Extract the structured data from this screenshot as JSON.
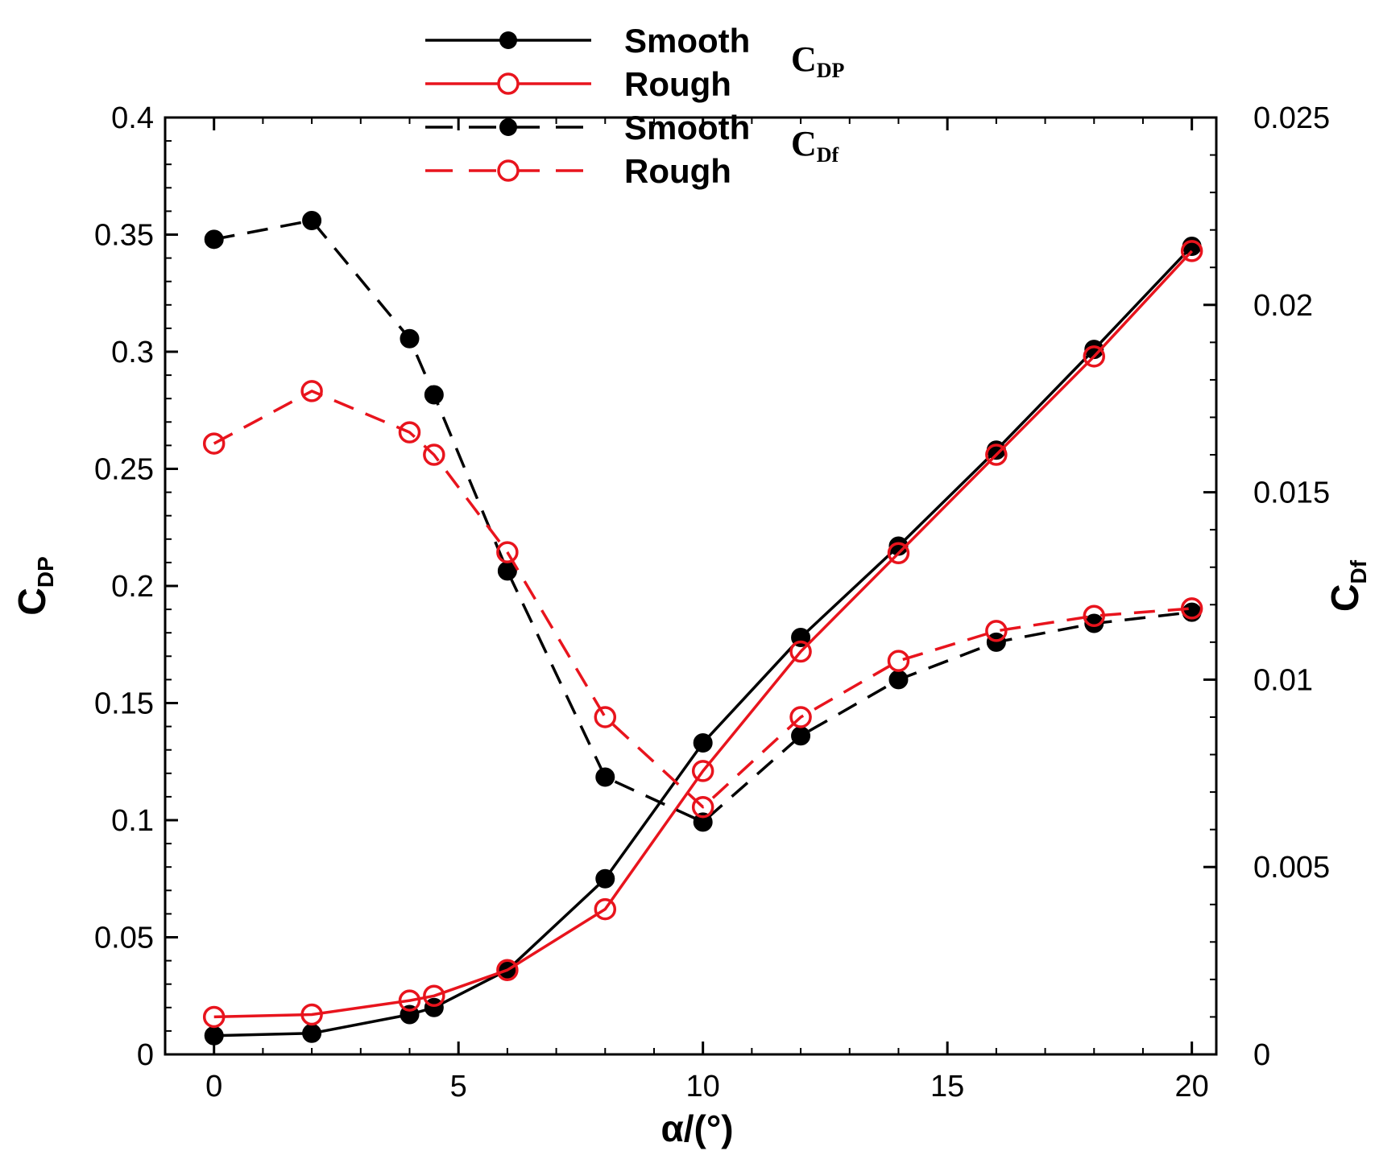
{
  "chart_data": {
    "type": "line",
    "title": "",
    "xlabel": "α/(°)",
    "ylabel": {
      "main": "C",
      "sub": "DP"
    },
    "y2label": {
      "main": "C",
      "sub": "Df"
    },
    "xlim": [
      -1,
      20.5
    ],
    "ylim": [
      0,
      0.4
    ],
    "y2lim": [
      0,
      0.025
    ],
    "xticks": [
      0,
      5,
      10,
      15,
      20
    ],
    "xtick_labels": [
      "0",
      "5",
      "10",
      "15",
      "20"
    ],
    "yticks": [
      0,
      0.05,
      0.1,
      0.15,
      0.2,
      0.25,
      0.3,
      0.35,
      0.4
    ],
    "ytick_labels": [
      "0",
      "0.05",
      "0.1",
      "0.15",
      "0.2",
      "0.25",
      "0.3",
      "0.35",
      "0.4"
    ],
    "y2ticks": [
      0,
      0.005,
      0.01,
      0.015,
      0.02,
      0.025
    ],
    "y2tick_labels": [
      "0",
      "0.005",
      "0.01",
      "0.015",
      "0.02",
      "0.025"
    ],
    "legend_groups": [
      {
        "label": {
          "main": "C",
          "sub": "DP"
        }
      },
      {
        "label": {
          "main": "C",
          "sub": "Df"
        }
      }
    ],
    "series": [
      {
        "name": "Smooth",
        "group": "CDP",
        "axis": "left",
        "color": "#000000",
        "dash": "solid",
        "marker": "filled",
        "x": [
          0,
          2,
          4,
          4.5,
          6,
          8,
          10,
          12,
          14,
          16,
          18,
          20
        ],
        "values": [
          0.008,
          0.009,
          0.017,
          0.02,
          0.036,
          0.075,
          0.133,
          0.178,
          0.217,
          0.258,
          0.301,
          0.345
        ]
      },
      {
        "name": "Rough",
        "group": "CDP",
        "axis": "left",
        "color": "#e8141d",
        "dash": "solid",
        "marker": "open",
        "x": [
          0,
          2,
          4,
          4.5,
          6,
          8,
          10,
          12,
          14,
          16,
          18,
          20
        ],
        "values": [
          0.016,
          0.017,
          0.023,
          0.025,
          0.036,
          0.062,
          0.121,
          0.172,
          0.214,
          0.256,
          0.298,
          0.343
        ]
      },
      {
        "name": "Smooth",
        "group": "CDf",
        "axis": "right",
        "color": "#000000",
        "dash": "dashed",
        "marker": "filled",
        "x": [
          0,
          2,
          4,
          4.5,
          6,
          8,
          10,
          12,
          14,
          16,
          18,
          20
        ],
        "values": [
          0.02175,
          0.02225,
          0.0191,
          0.0176,
          0.0129,
          0.0074,
          0.0062,
          0.0085,
          0.01,
          0.011,
          0.0115,
          0.0118
        ]
      },
      {
        "name": "Rough",
        "group": "CDf",
        "axis": "right",
        "color": "#e8141d",
        "dash": "dashed",
        "marker": "open",
        "x": [
          0,
          2,
          4,
          4.5,
          6,
          8,
          10,
          12,
          14,
          16,
          18,
          20
        ],
        "values": [
          0.0163,
          0.0177,
          0.0166,
          0.016,
          0.0134,
          0.009,
          0.0066,
          0.009,
          0.0105,
          0.0113,
          0.0117,
          0.0119
        ]
      }
    ]
  }
}
